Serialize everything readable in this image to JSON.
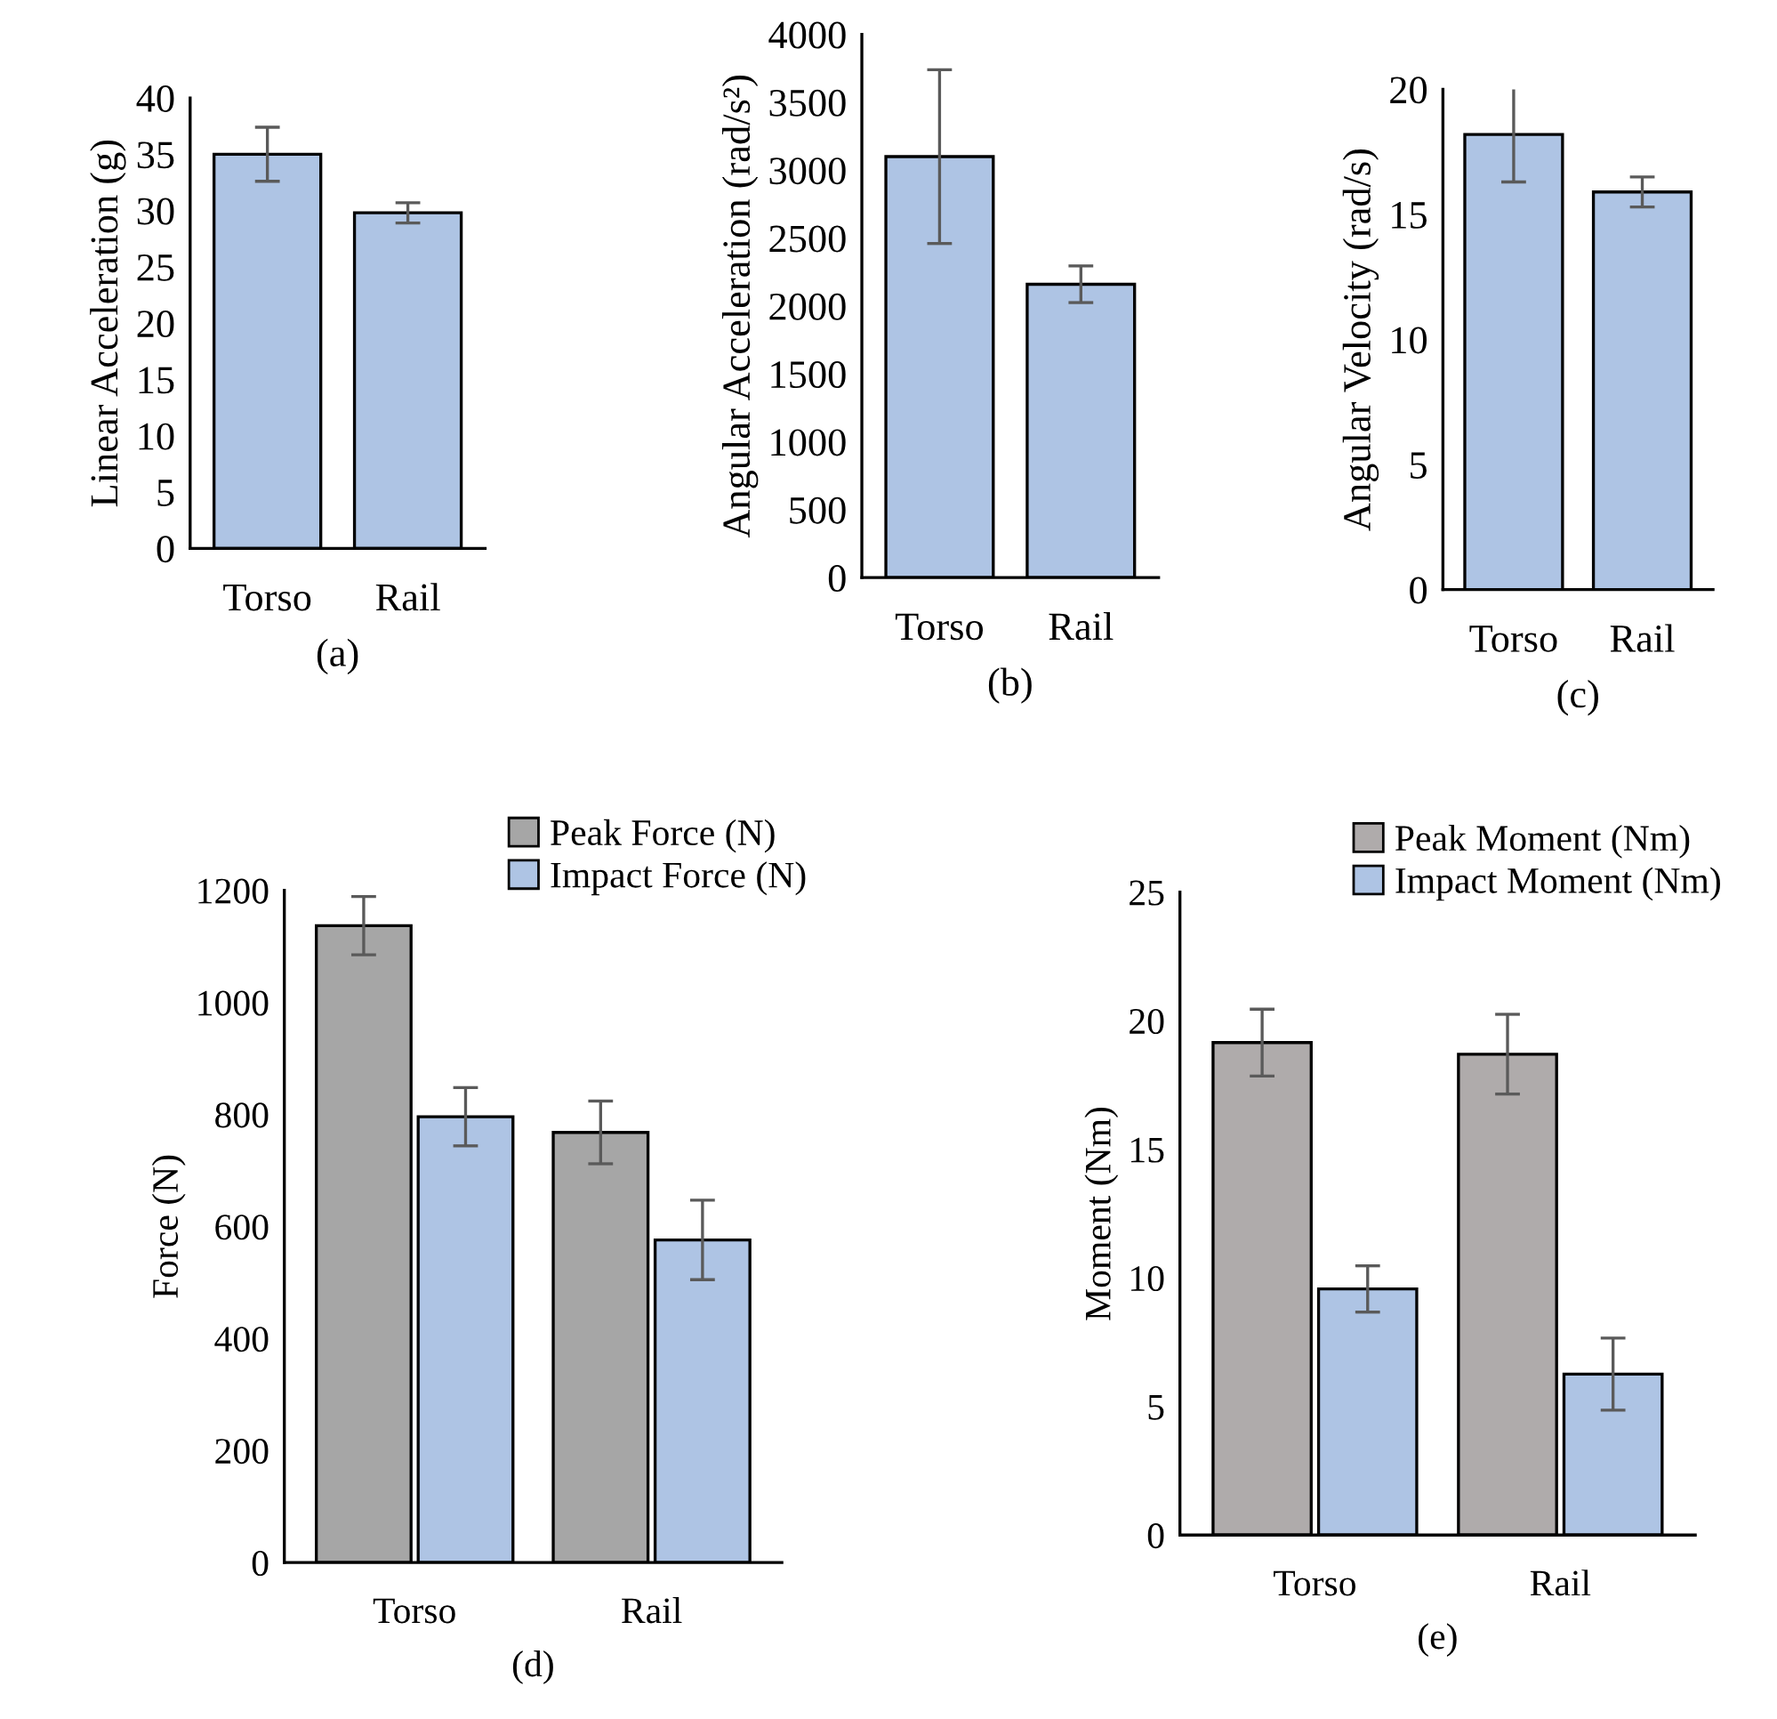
{
  "chart_data": [
    {
      "type": "bar",
      "categories": [
        "Torso",
        "Rail"
      ],
      "values": [
        35,
        29.8
      ],
      "errors": [
        2.4,
        0.9
      ],
      "color": "#aec4e4",
      "ylabel": "Linear Acceleration (g)",
      "xlabel": "(a)",
      "ylim": [
        0,
        40
      ],
      "yticks": [
        0,
        5,
        10,
        15,
        20,
        25,
        30,
        35,
        40
      ]
    },
    {
      "type": "bar",
      "categories": [
        "Torso",
        "Rail"
      ],
      "values": [
        3100,
        2160
      ],
      "errors": [
        640,
        135
      ],
      "color": "#aec4e4",
      "ylabel": "Angular Acceleration (rad/s²)",
      "xlabel": "(b)",
      "ylim": [
        0,
        4000
      ],
      "yticks": [
        0,
        500,
        1000,
        1500,
        2000,
        2500,
        3000,
        3500,
        4000
      ]
    },
    {
      "type": "bar",
      "categories": [
        "Torso",
        "Rail"
      ],
      "values": [
        18.2,
        15.9
      ],
      "errors": [
        1.9,
        0.6
      ],
      "color": "#aec4e4",
      "ylabel": "Angular Velocity (rad/s)",
      "xlabel": "(c)",
      "ylim": [
        0,
        20
      ],
      "yticks": [
        0,
        5,
        10,
        15,
        20
      ]
    },
    {
      "type": "bar",
      "categories": [
        "Torso",
        "Rail"
      ],
      "ylabel": "Force (N)",
      "xlabel": "(d)",
      "ylim": [
        0,
        1200
      ],
      "yticks": [
        0,
        200,
        400,
        600,
        800,
        1000,
        1200
      ],
      "legend": "top right",
      "series": [
        {
          "name": "Peak Force (N)",
          "color": "#a6a6a6",
          "values": [
            1137,
            768
          ],
          "errors": [
            52,
            56
          ]
        },
        {
          "name": "Impact Force (N)",
          "color": "#aec4e4",
          "values": [
            796,
            576
          ],
          "errors": [
            52,
            71
          ]
        }
      ]
    },
    {
      "type": "bar",
      "categories": [
        "Torso",
        "Rail"
      ],
      "ylabel": "Moment (Nm)",
      "xlabel": "(e)",
      "ylim": [
        0,
        25
      ],
      "yticks": [
        0,
        5,
        10,
        15,
        20,
        25
      ],
      "legend": "top right",
      "series": [
        {
          "name": "Peak Moment (Nm)",
          "color": "#afabab",
          "values": [
            19.15,
            18.7
          ],
          "errors": [
            1.3,
            1.55
          ]
        },
        {
          "name": "Impact Moment (Nm)",
          "color": "#aec4e4",
          "values": [
            9.57,
            6.26
          ],
          "errors": [
            0.9,
            1.4
          ]
        }
      ]
    }
  ]
}
